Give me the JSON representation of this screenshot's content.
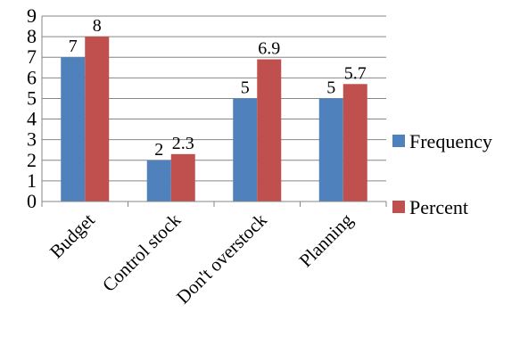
{
  "chart_data": {
    "type": "bar",
    "categories": [
      "Budget",
      "Control stock",
      "Don't overstock",
      "Planning"
    ],
    "series": [
      {
        "name": "Frequency",
        "values": [
          7,
          2,
          5,
          5
        ],
        "labels": [
          "7",
          "2",
          "5",
          "5"
        ],
        "color": "#4F81BD"
      },
      {
        "name": "Percent",
        "values": [
          8,
          2.3,
          6.9,
          5.7
        ],
        "labels": [
          "8",
          "2.3",
          "6.9",
          "5.7"
        ],
        "color": "#C0504D"
      }
    ],
    "yticks": [
      0,
      1,
      2,
      3,
      4,
      5,
      6,
      7,
      8,
      9
    ],
    "ylim": [
      0,
      9
    ],
    "title": "",
    "xlabel": "",
    "ylabel": "",
    "grid": true,
    "legend": "right"
  }
}
